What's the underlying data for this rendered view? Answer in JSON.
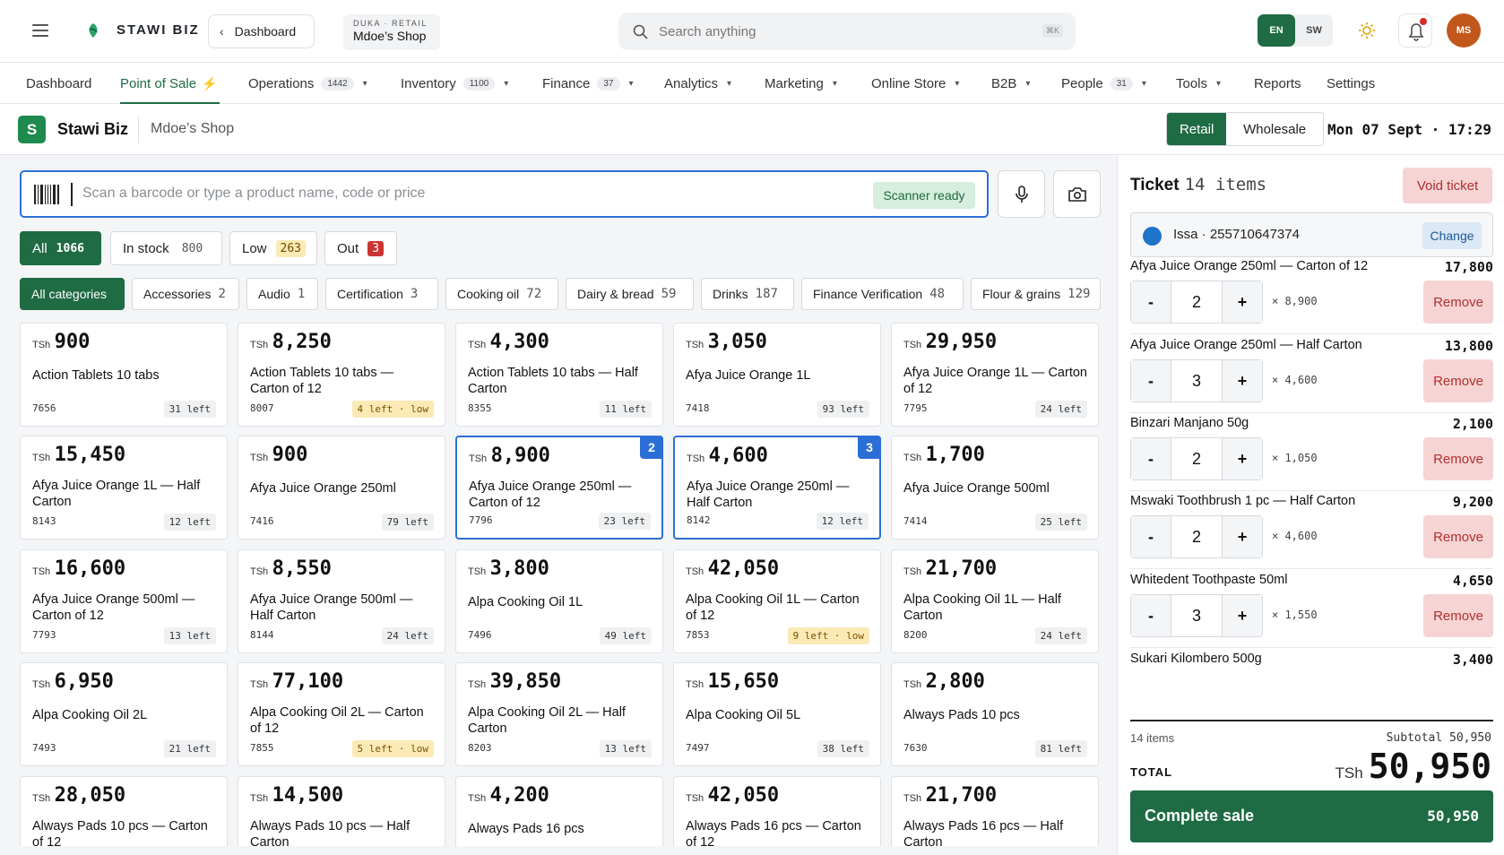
{
  "topbar": {
    "brand": "STAWI BIZ",
    "back_label": "Dashboard",
    "shop_kind": "DUKA · RETAIL",
    "shop_name": "Mdoe’s Shop",
    "search_placeholder": "Search anything",
    "search_shortcut": "⌘K",
    "lang_en": "EN",
    "lang_sw": "SW",
    "avatar_initials": "MS"
  },
  "nav": [
    {
      "label": "Dashboard",
      "badge": "",
      "caret": false
    },
    {
      "label": "Point of Sale",
      "badge": "",
      "caret": false,
      "active": true
    },
    {
      "label": "Operations",
      "badge": "1442",
      "caret": true
    },
    {
      "label": "Inventory",
      "badge": "1100",
      "caret": true
    },
    {
      "label": "Finance",
      "badge": "37",
      "caret": true
    },
    {
      "label": "Analytics",
      "badge": "",
      "caret": true
    },
    {
      "label": "Marketing",
      "badge": "",
      "caret": true
    },
    {
      "label": "Online Store",
      "badge": "",
      "caret": true
    },
    {
      "label": "B2B",
      "badge": "",
      "caret": true
    },
    {
      "label": "People",
      "badge": "31",
      "caret": true
    },
    {
      "label": "Tools",
      "badge": "",
      "caret": true
    },
    {
      "label": "Reports",
      "badge": "",
      "caret": false
    },
    {
      "label": "Settings",
      "badge": "",
      "caret": false
    }
  ],
  "shopbar": {
    "logo_letter": "S",
    "title": "Stawi Biz",
    "subtitle": "Mdoe’s Shop",
    "mode_retail": "Retail",
    "mode_wholesale": "Wholesale",
    "datetime": "Mon 07 Sept · 17:29"
  },
  "scanner": {
    "placeholder": "Scan a barcode or type a product name, code or price",
    "status": "Scanner ready"
  },
  "stock_filters": [
    {
      "label": "All",
      "count": "1066",
      "active": true
    },
    {
      "label": "In stock",
      "count": "800"
    },
    {
      "label": "Low",
      "count": "263"
    },
    {
      "label": "Out",
      "count": "3"
    }
  ],
  "categories": [
    {
      "label": "All categories",
      "count": "",
      "active": true
    },
    {
      "label": "Accessories",
      "count": "2"
    },
    {
      "label": "Audio",
      "count": "1"
    },
    {
      "label": "Certification",
      "count": "3"
    },
    {
      "label": "Cooking oil",
      "count": "72"
    },
    {
      "label": "Dairy & bread",
      "count": "59"
    },
    {
      "label": "Drinks",
      "count": "187"
    },
    {
      "label": "Finance Verification",
      "count": "48"
    },
    {
      "label": "Flour & grains",
      "count": "129"
    }
  ],
  "currency": "TSh",
  "products": [
    {
      "price": "900",
      "name": "Action Tablets 10 tabs",
      "code": "7656",
      "left": "31 left"
    },
    {
      "price": "8,250",
      "name": "Action Tablets 10 tabs — Carton of 12",
      "code": "8007",
      "left": "4 left · low",
      "low": true
    },
    {
      "price": "4,300",
      "name": "Action Tablets 10 tabs — Half Carton",
      "code": "8355",
      "left": "11 left"
    },
    {
      "price": "3,050",
      "name": "Afya Juice Orange 1L",
      "code": "7418",
      "left": "93 left"
    },
    {
      "price": "29,950",
      "name": "Afya Juice Orange 1L — Carton of 12",
      "code": "7795",
      "left": "24 left"
    },
    {
      "price": "15,450",
      "name": "Afya Juice Orange 1L — Half Carton",
      "code": "8143",
      "left": "12 left"
    },
    {
      "price": "900",
      "name": "Afya Juice Orange 250ml",
      "code": "7416",
      "left": "79 left"
    },
    {
      "price": "8,900",
      "name": "Afya Juice Orange 250ml — Carton of 12",
      "code": "7796",
      "left": "23 left",
      "selected": "2"
    },
    {
      "price": "4,600",
      "name": "Afya Juice Orange 250ml — Half Carton",
      "code": "8142",
      "left": "12 left",
      "selected": "3"
    },
    {
      "price": "1,700",
      "name": "Afya Juice Orange 500ml",
      "code": "7414",
      "left": "25 left"
    },
    {
      "price": "16,600",
      "name": "Afya Juice Orange 500ml — Carton of 12",
      "code": "7793",
      "left": "13 left"
    },
    {
      "price": "8,550",
      "name": "Afya Juice Orange 500ml — Half Carton",
      "code": "8144",
      "left": "24 left"
    },
    {
      "price": "3,800",
      "name": "Alpa Cooking Oil 1L",
      "code": "7496",
      "left": "49 left"
    },
    {
      "price": "42,050",
      "name": "Alpa Cooking Oil 1L — Carton of 12",
      "code": "7853",
      "left": "9 left · low",
      "low": true
    },
    {
      "price": "21,700",
      "name": "Alpa Cooking Oil 1L — Half Carton",
      "code": "8200",
      "left": "24 left"
    },
    {
      "price": "6,950",
      "name": "Alpa Cooking Oil 2L",
      "code": "7493",
      "left": "21 left"
    },
    {
      "price": "77,100",
      "name": "Alpa Cooking Oil 2L — Carton of 12",
      "code": "7855",
      "left": "5 left · low",
      "low": true
    },
    {
      "price": "39,850",
      "name": "Alpa Cooking Oil 2L — Half Carton",
      "code": "8203",
      "left": "13 left"
    },
    {
      "price": "15,650",
      "name": "Alpa Cooking Oil 5L",
      "code": "7497",
      "left": "38 left"
    },
    {
      "price": "2,800",
      "name": "Always Pads 10 pcs",
      "code": "7630",
      "left": "81 left"
    },
    {
      "price": "28,050",
      "name": "Always Pads 10 pcs — Carton of 12",
      "code": "",
      "left": ""
    },
    {
      "price": "14,500",
      "name": "Always Pads 10 pcs — Half Carton",
      "code": "",
      "left": ""
    },
    {
      "price": "4,200",
      "name": "Always Pads 16 pcs",
      "code": "",
      "left": ""
    },
    {
      "price": "42,050",
      "name": "Always Pads 16 pcs — Carton of 12",
      "code": "",
      "left": ""
    },
    {
      "price": "21,700",
      "name": "Always Pads 16 pcs — Half Carton",
      "code": "",
      "left": ""
    }
  ],
  "ticket": {
    "title": "Ticket",
    "count": "14 items",
    "void_label": "Void ticket",
    "customer": "Issa · 255710647374",
    "change_label": "Change",
    "remove_label": "Remove",
    "lines": [
      {
        "name": "Afya Juice Orange 250ml — Carton of 12",
        "total": "17,800",
        "qty": "2",
        "unit": "× 8,900"
      },
      {
        "name": "Afya Juice Orange 250ml — Half Carton",
        "total": "13,800",
        "qty": "3",
        "unit": "× 4,600"
      },
      {
        "name": "Binzari Manjano 50g",
        "total": "2,100",
        "qty": "2",
        "unit": "× 1,050"
      },
      {
        "name": "Mswaki Toothbrush 1 pc — Half Carton",
        "total": "9,200",
        "qty": "2",
        "unit": "× 4,600"
      },
      {
        "name": "Whitedent Toothpaste 50ml",
        "total": "4,650",
        "qty": "3",
        "unit": "× 1,550"
      },
      {
        "name": "Sukari Kilombero 500g",
        "total": "3,400",
        "qty": "",
        "unit": ""
      }
    ],
    "items_count": "14 items",
    "subtotal": "Subtotal 50,950",
    "total_label": "TOTAL",
    "total_currency": "TSh",
    "total_value": "50,950",
    "complete_label": "Complete sale",
    "complete_value": "50,950"
  },
  "colors": {
    "accent": "#1e6b44",
    "selection": "#2b6fd6",
    "danger": "#b1302f"
  }
}
